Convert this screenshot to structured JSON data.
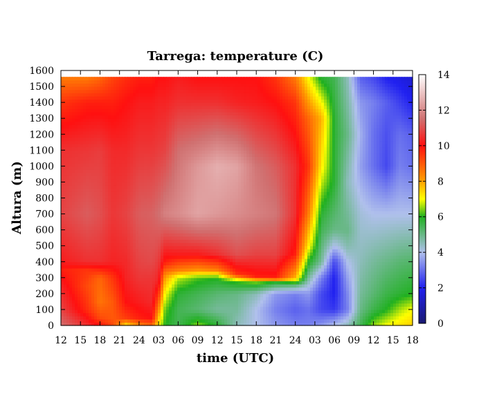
{
  "chart_data": {
    "type": "heatmap",
    "title": "Tarrega: temperature (C)",
    "xlabel": "time (UTC)",
    "ylabel": "Altura (m)",
    "x_ticks": [
      "12",
      "15",
      "18",
      "21",
      "24",
      "03",
      "06",
      "09",
      "12",
      "15",
      "18",
      "21",
      "24",
      "03",
      "06",
      "09",
      "12",
      "15",
      "18"
    ],
    "xlim": [
      0,
      54
    ],
    "x_unit": "hours",
    "y_ticks": [
      0,
      100,
      200,
      300,
      400,
      500,
      600,
      700,
      800,
      900,
      1000,
      1100,
      1200,
      1300,
      1400,
      1500,
      1600
    ],
    "ylim": [
      0,
      1600
    ],
    "data_top_altitude": 1560,
    "colorbar": {
      "ticks": [
        0,
        2,
        4,
        6,
        8,
        10,
        12,
        14
      ],
      "range": [
        0,
        14
      ],
      "stops": [
        {
          "value": 0,
          "color": "#1a1a70"
        },
        {
          "value": 2,
          "color": "#2020f0"
        },
        {
          "value": 4,
          "color": "#b0c0ec"
        },
        {
          "value": 6,
          "color": "#20b020"
        },
        {
          "value": 7,
          "color": "#ffff00"
        },
        {
          "value": 8,
          "color": "#ffa000"
        },
        {
          "value": 10,
          "color": "#ff1010"
        },
        {
          "value": 11.5,
          "color": "#d07070"
        },
        {
          "value": 14,
          "color": "#ffffff"
        }
      ]
    },
    "profiles": [
      {
        "t": 0,
        "z": [
          0,
          100,
          250,
          350,
          400,
          700,
          1100,
          1400,
          1560
        ],
        "temp": [
          11.5,
          10.8,
          10.3,
          9.8,
          10.2,
          10.8,
          10.5,
          9.5,
          8.5
        ]
      },
      {
        "t": 4,
        "z": [
          0,
          100,
          250,
          350,
          400,
          700,
          1100,
          1400,
          1560
        ],
        "temp": [
          10.5,
          9.6,
          9.2,
          9.5,
          10.5,
          11.2,
          10.6,
          9.8,
          8.5
        ]
      },
      {
        "t": 6,
        "z": [
          0,
          50,
          150,
          300,
          400,
          700,
          1100,
          1400,
          1560
        ],
        "temp": [
          10.0,
          9.2,
          8.6,
          8.8,
          10.5,
          11.0,
          10.7,
          9.8,
          8.8
        ]
      },
      {
        "t": 8,
        "z": [
          0,
          50,
          150,
          300,
          400,
          700,
          1100,
          1400,
          1560
        ],
        "temp": [
          9.2,
          9.0,
          9.0,
          9.5,
          10.3,
          10.6,
          10.4,
          9.8,
          9.3
        ]
      },
      {
        "t": 10,
        "z": [
          0,
          50,
          150,
          300,
          400,
          700,
          1100,
          1400,
          1560
        ],
        "temp": [
          7.2,
          9.4,
          10.0,
          10.3,
          10.4,
          10.8,
          10.4,
          10.0,
          9.6
        ]
      },
      {
        "t": 12,
        "z": [
          0,
          50,
          150,
          300,
          400,
          700,
          1100,
          1400,
          1560
        ],
        "temp": [
          8.3,
          9.8,
          10.2,
          10.6,
          10.8,
          11.2,
          10.6,
          10.2,
          9.8
        ]
      },
      {
        "t": 14,
        "z": [
          0,
          50,
          150,
          300,
          400,
          700,
          1100,
          1400,
          1560
        ],
        "temp": [
          8.8,
          10.0,
          10.4,
          10.6,
          10.9,
          11.3,
          10.6,
          10.2,
          9.8
        ]
      },
      {
        "t": 15,
        "z": [
          0,
          100,
          200,
          280,
          380,
          700,
          1100,
          1400,
          1560
        ],
        "temp": [
          7.0,
          8.3,
          9.5,
          10.3,
          10.6,
          11.5,
          10.7,
          10.3,
          10.0
        ]
      },
      {
        "t": 16,
        "z": [
          0,
          100,
          200,
          300,
          400,
          500,
          700,
          1100,
          1400,
          1560
        ],
        "temp": [
          6.0,
          6.3,
          7.0,
          8.0,
          9.8,
          10.5,
          11.8,
          10.8,
          10.3,
          10.0
        ]
      },
      {
        "t": 18,
        "z": [
          0,
          100,
          200,
          300,
          350,
          450,
          700,
          1100,
          1400,
          1560
        ],
        "temp": [
          5.5,
          5.5,
          5.8,
          6.7,
          8.5,
          10.2,
          12.0,
          11.5,
          10.5,
          10.2
        ]
      },
      {
        "t": 21,
        "z": [
          0,
          100,
          200,
          300,
          350,
          450,
          700,
          1000,
          1400,
          1560
        ],
        "temp": [
          6.5,
          5.2,
          5.5,
          6.2,
          8.2,
          10.2,
          12.4,
          12.2,
          10.5,
          10.0
        ]
      },
      {
        "t": 24,
        "z": [
          0,
          100,
          200,
          300,
          350,
          450,
          700,
          1000,
          1400,
          1560
        ],
        "temp": [
          5.8,
          4.8,
          5.2,
          6.0,
          8.5,
          10.5,
          12.2,
          12.6,
          10.5,
          10.0
        ]
      },
      {
        "t": 27,
        "z": [
          0,
          100,
          200,
          280,
          320,
          450,
          700,
          1000,
          1400,
          1560
        ],
        "temp": [
          4.5,
          4.8,
          5.0,
          6.2,
          9.5,
          11.0,
          12.0,
          12.4,
          10.3,
          10.0
        ]
      },
      {
        "t": 30,
        "z": [
          0,
          100,
          200,
          270,
          310,
          450,
          700,
          1000,
          1400,
          1560
        ],
        "temp": [
          4.0,
          4.0,
          4.5,
          6.3,
          9.8,
          10.8,
          11.8,
          11.6,
          10.2,
          10.0
        ]
      },
      {
        "t": 33,
        "z": [
          0,
          100,
          200,
          270,
          300,
          450,
          700,
          1000,
          1400,
          1560
        ],
        "temp": [
          3.5,
          3.2,
          3.5,
          5.8,
          9.8,
          10.8,
          11.6,
          11.2,
          10.0,
          9.5
        ]
      },
      {
        "t": 36,
        "z": [
          0,
          100,
          200,
          250,
          300,
          450,
          700,
          1000,
          1400,
          1560
        ],
        "temp": [
          3.2,
          2.8,
          3.2,
          5.0,
          7.8,
          9.8,
          10.5,
          10.5,
          9.5,
          8.5
        ]
      },
      {
        "t": 38,
        "z": [
          0,
          100,
          200,
          300,
          400,
          500,
          700,
          1000,
          1300,
          1560
        ],
        "temp": [
          3.2,
          3.0,
          3.5,
          4.8,
          6.0,
          7.2,
          8.5,
          9.5,
          8.8,
          7.0
        ]
      },
      {
        "t": 40,
        "z": [
          0,
          100,
          200,
          300,
          400,
          700,
          1000,
          1300,
          1560
        ],
        "temp": [
          3.5,
          2.5,
          2.5,
          3.2,
          4.8,
          5.8,
          7.2,
          7.8,
          5.8
        ]
      },
      {
        "t": 42,
        "z": [
          0,
          100,
          200,
          300,
          400,
          500,
          600,
          900,
          1300,
          1560
        ],
        "temp": [
          4.0,
          2.3,
          2.0,
          2.0,
          2.5,
          4.0,
          5.0,
          5.8,
          5.8,
          5.5
        ]
      },
      {
        "t": 44,
        "z": [
          0,
          100,
          200,
          300,
          400,
          500,
          600,
          900,
          1200,
          1560
        ],
        "temp": [
          4.5,
          3.2,
          3.3,
          3.6,
          4.0,
          4.6,
          5.0,
          4.5,
          5.0,
          4.5
        ]
      },
      {
        "t": 46,
        "z": [
          0,
          100,
          200,
          400,
          700,
          1000,
          1200,
          1400,
          1560
        ],
        "temp": [
          5.5,
          5.0,
          4.8,
          4.5,
          4.2,
          3.6,
          3.8,
          3.5,
          2.8
        ]
      },
      {
        "t": 48,
        "z": [
          0,
          100,
          200,
          400,
          700,
          1000,
          1200,
          1400,
          1560
        ],
        "temp": [
          6.5,
          5.6,
          5.2,
          4.8,
          4.0,
          3.0,
          3.0,
          3.2,
          2.5
        ]
      },
      {
        "t": 50,
        "z": [
          0,
          100,
          200,
          400,
          700,
          1000,
          1200,
          1400,
          1560
        ],
        "temp": [
          7.0,
          6.0,
          5.6,
          5.0,
          4.0,
          2.5,
          2.6,
          2.8,
          2.0
        ]
      },
      {
        "t": 52,
        "z": [
          0,
          100,
          200,
          400,
          700,
          1000,
          1200,
          1400,
          1560
        ],
        "temp": [
          7.3,
          6.6,
          5.8,
          5.2,
          4.0,
          3.2,
          3.0,
          2.4,
          1.8
        ]
      },
      {
        "t": 54,
        "z": [
          0,
          100,
          200,
          400,
          700,
          1000,
          1200,
          1400,
          1560
        ],
        "temp": [
          7.5,
          7.0,
          6.0,
          5.3,
          4.0,
          3.0,
          2.8,
          2.0,
          1.5
        ]
      }
    ]
  }
}
